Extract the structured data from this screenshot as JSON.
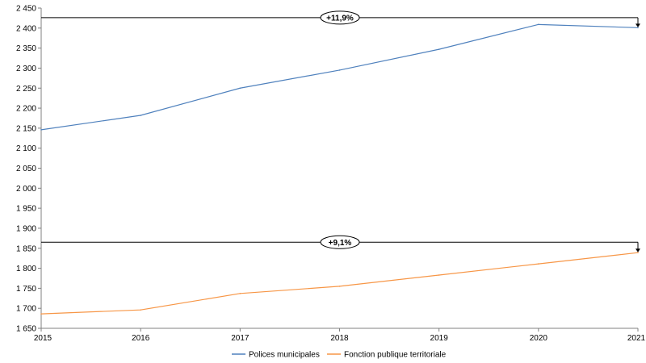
{
  "chart_data": {
    "type": "line",
    "x": [
      2015,
      2016,
      2017,
      2018,
      2019,
      2020,
      2021
    ],
    "ylim": [
      1650,
      2450
    ],
    "ytick_labels": [
      "1 650",
      "1 700",
      "1 750",
      "1 800",
      "1 850",
      "1 900",
      "1 950",
      "2 000",
      "2 050",
      "2 100",
      "2 150",
      "2 200",
      "2 250",
      "2 300",
      "2 350",
      "2 400",
      "2 450"
    ],
    "ytick_values": [
      1650,
      1700,
      1750,
      1800,
      1850,
      1900,
      1950,
      2000,
      2050,
      2100,
      2150,
      2200,
      2250,
      2300,
      2350,
      2400,
      2450
    ],
    "xtick_labels": [
      "2015",
      "2016",
      "2017",
      "2018",
      "2019",
      "2020",
      "2021"
    ],
    "grid": false,
    "legend_position": "bottom-center",
    "series": [
      {
        "name": "Polices municipales",
        "color": "#4f81bd",
        "values": [
          2146,
          2182,
          2250,
          2295,
          2347,
          2409,
          2401
        ]
      },
      {
        "name": "Fonction publique territoriale",
        "color": "#f79646",
        "values": [
          1686,
          1696,
          1737,
          1755,
          1783,
          1811,
          1839
        ]
      }
    ],
    "annotations": [
      {
        "text": "+11,9%",
        "y": 2426,
        "series": 0
      },
      {
        "text": "+9,1%",
        "y": 1865,
        "series": 1
      }
    ]
  }
}
